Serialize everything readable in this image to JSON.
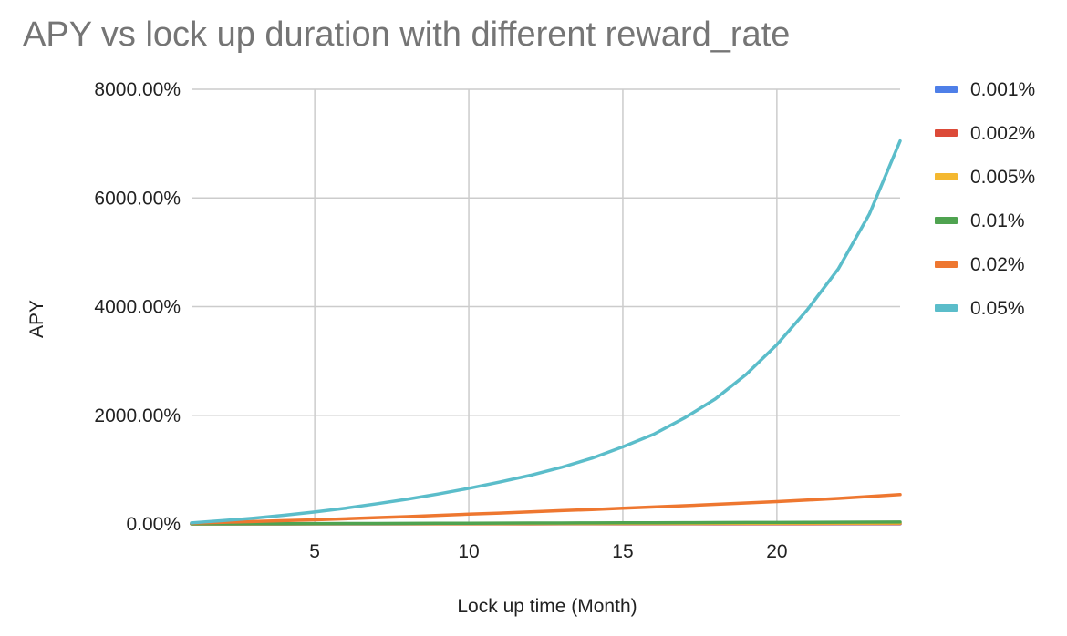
{
  "chart_data": {
    "type": "line",
    "title": "APY vs lock up duration with different reward_rate",
    "xlabel": "Lock up time (Month)",
    "ylabel": "APY",
    "x": [
      1,
      2,
      3,
      4,
      5,
      6,
      7,
      8,
      9,
      10,
      11,
      12,
      13,
      14,
      15,
      16,
      17,
      18,
      19,
      20,
      21,
      22,
      23,
      24
    ],
    "x_ticks": [
      5,
      10,
      15,
      20
    ],
    "xlim": [
      1,
      24
    ],
    "ylim": [
      0,
      8000
    ],
    "y_ticks": [
      0,
      2000,
      4000,
      6000,
      8000
    ],
    "y_tick_labels": [
      "0.00%",
      "2000.00%",
      "4000.00%",
      "6000.00%",
      "8000.00%"
    ],
    "grid": true,
    "legend_position": "right",
    "series": [
      {
        "name": "0.001%",
        "color": "#4e7fe8",
        "values": [
          0.1,
          0.2,
          0.4,
          0.5,
          0.6,
          0.7,
          0.8,
          1,
          1.1,
          1.2,
          1.3,
          1.4,
          1.6,
          1.7,
          1.8,
          1.9,
          2,
          2.2,
          2.3,
          2.4,
          2.5,
          2.6,
          2.8,
          2.9
        ]
      },
      {
        "name": "0.002%",
        "color": "#dc4a38",
        "values": [
          0.2,
          0.5,
          0.7,
          1,
          1.2,
          1.5,
          1.7,
          1.9,
          2.2,
          2.4,
          2.7,
          2.9,
          3.2,
          3.4,
          3.7,
          3.9,
          4.2,
          4.4,
          4.7,
          4.9,
          5.2,
          5.4,
          5.7,
          6
        ]
      },
      {
        "name": "0.005%",
        "color": "#f4b830",
        "values": [
          0.6,
          1.2,
          1.8,
          2.5,
          3.1,
          3.7,
          4.3,
          5,
          5.6,
          6.3,
          6.9,
          7.6,
          8.3,
          8.9,
          9.6,
          10.3,
          11,
          11.7,
          12.4,
          13.1,
          13.8,
          14.5,
          15.2,
          15.9
        ]
      },
      {
        "name": "0.01%",
        "color": "#4fa350",
        "values": [
          1.2,
          2.5,
          3.8,
          5.1,
          6.4,
          7.7,
          9,
          10.4,
          11.8,
          13.1,
          14.6,
          16,
          17.4,
          18.9,
          20.4,
          21.9,
          23.4,
          25,
          26.5,
          28.1,
          29.7,
          31.4,
          33,
          34.7
        ]
      },
      {
        "name": "0.02%",
        "color": "#ee7730",
        "values": [
          15,
          30,
          45,
          60,
          75,
          95,
          115,
          135,
          158,
          180,
          200,
          222,
          245,
          265,
          290,
          312,
          335,
          360,
          385,
          410,
          440,
          470,
          505,
          540
        ]
      },
      {
        "name": "0.05%",
        "color": "#5bbdca",
        "values": [
          20,
          60,
          105,
          160,
          220,
          290,
          370,
          455,
          550,
          655,
          770,
          895,
          1040,
          1210,
          1420,
          1650,
          1950,
          2300,
          2750,
          3300,
          3950,
          4700,
          5700,
          7050
        ]
      }
    ]
  },
  "colors": {
    "background": "#ffffff",
    "grid": "#cccccc",
    "title": "#757575",
    "text": "#222222"
  }
}
